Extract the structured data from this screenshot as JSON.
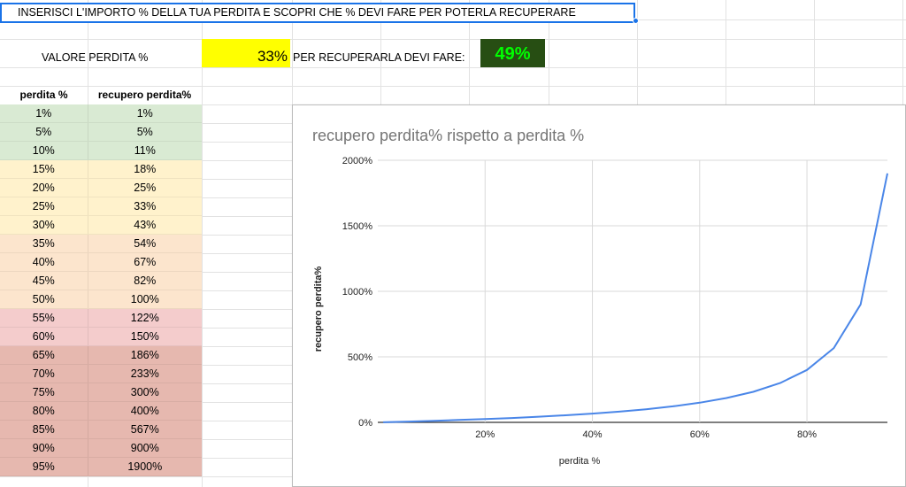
{
  "banner": {
    "text": "INSERISCI L'IMPORTO % DELLA TUA PERDITA E SCOPRI CHE % DEVI FARE PER POTERLA RECUPERARE"
  },
  "inputs": {
    "loss_label": "VALORE PERDITA %",
    "loss_value": "33%",
    "recover_label": "PER RECUPERARLA DEVI FARE:",
    "recover_value": "49%"
  },
  "colors": {
    "loss_bg": "#ffff00",
    "result_bg": "#274e13",
    "result_text": "#00ff00",
    "band_green": "#d9ead3",
    "band_yellow": "#fff2cc",
    "band_orange": "#fce5cd",
    "band_pink": "#f4cccc",
    "band_red": "#e6b8af",
    "line": "#4a86e8"
  },
  "table": {
    "headers": [
      "perdita %",
      "recupero perdita%"
    ],
    "rows": [
      {
        "loss": "1%",
        "recovery": "1%",
        "band": "green"
      },
      {
        "loss": "5%",
        "recovery": "5%",
        "band": "green"
      },
      {
        "loss": "10%",
        "recovery": "11%",
        "band": "green"
      },
      {
        "loss": "15%",
        "recovery": "18%",
        "band": "yellow"
      },
      {
        "loss": "20%",
        "recovery": "25%",
        "band": "yellow"
      },
      {
        "loss": "25%",
        "recovery": "33%",
        "band": "yellow"
      },
      {
        "loss": "30%",
        "recovery": "43%",
        "band": "yellow"
      },
      {
        "loss": "35%",
        "recovery": "54%",
        "band": "orange"
      },
      {
        "loss": "40%",
        "recovery": "67%",
        "band": "orange"
      },
      {
        "loss": "45%",
        "recovery": "82%",
        "band": "orange"
      },
      {
        "loss": "50%",
        "recovery": "100%",
        "band": "orange"
      },
      {
        "loss": "55%",
        "recovery": "122%",
        "band": "pink"
      },
      {
        "loss": "60%",
        "recovery": "150%",
        "band": "pink"
      },
      {
        "loss": "65%",
        "recovery": "186%",
        "band": "red"
      },
      {
        "loss": "70%",
        "recovery": "233%",
        "band": "red"
      },
      {
        "loss": "75%",
        "recovery": "300%",
        "band": "red"
      },
      {
        "loss": "80%",
        "recovery": "400%",
        "band": "red"
      },
      {
        "loss": "85%",
        "recovery": "567%",
        "band": "red"
      },
      {
        "loss": "90%",
        "recovery": "900%",
        "band": "red"
      },
      {
        "loss": "95%",
        "recovery": "1900%",
        "band": "red"
      }
    ]
  },
  "chart_data": {
    "type": "line",
    "title": "recupero perdita% rispetto a perdita %",
    "xlabel": "perdita %",
    "ylabel": "recupero perdita%",
    "x": [
      1,
      5,
      10,
      15,
      20,
      25,
      30,
      35,
      40,
      45,
      50,
      55,
      60,
      65,
      70,
      75,
      80,
      85,
      90,
      95
    ],
    "series": [
      {
        "values": [
          1,
          5,
          11,
          18,
          25,
          33,
          43,
          54,
          67,
          82,
          100,
          122,
          150,
          186,
          233,
          300,
          400,
          567,
          900,
          1900
        ]
      }
    ],
    "xlim": [
      0,
      95
    ],
    "ylim": [
      0,
      2000
    ],
    "xticks": [
      20,
      40,
      60,
      80
    ],
    "xtick_labels": [
      "20%",
      "40%",
      "60%",
      "80%"
    ],
    "yticks": [
      0,
      500,
      1000,
      1500,
      2000
    ],
    "ytick_labels": [
      "0%",
      "500%",
      "1000%",
      "1500%",
      "2000%"
    ],
    "grid": true,
    "legend": "none"
  }
}
